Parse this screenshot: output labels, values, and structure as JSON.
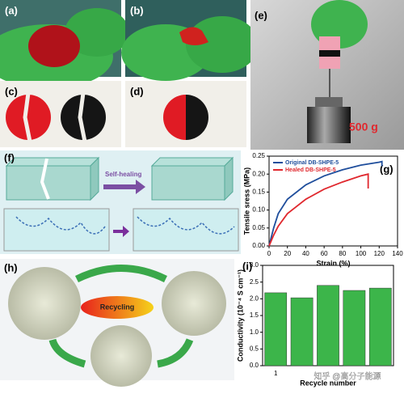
{
  "panel_labels": [
    "(a)",
    "(b)",
    "(c)",
    "(d)",
    "(e)",
    "(f)",
    "(g)",
    "(h)",
    "(i)"
  ],
  "annotations": {
    "weight": "500 g",
    "self_healing": "Self-healing",
    "recycling": "Recycling",
    "watermark": "知乎 @高分子能源"
  },
  "chart_data": [
    {
      "type": "line",
      "xlabel": "Strain (%)",
      "ylabel": "Tensile sress (MPa)",
      "xlim": [
        0,
        140
      ],
      "xticks": [
        0,
        20,
        40,
        60,
        80,
        100,
        120,
        140
      ],
      "ylim": [
        0,
        0.25
      ],
      "yticks": [
        {
          "value": 0,
          "label": "0.00"
        },
        {
          "value": 0.05,
          "label": "0.05"
        },
        {
          "value": 0.1,
          "label": "0.10"
        },
        {
          "value": 0.15,
          "label": "0.15"
        },
        {
          "value": 0.2,
          "label": "0.20"
        },
        {
          "value": 0.25,
          "label": "0.25"
        }
      ],
      "legend": "top-left",
      "series": [
        {
          "name": "Original DB-SHPE-5",
          "color": "#1f4e9c",
          "x": [
            0,
            5,
            10,
            20,
            40,
            60,
            80,
            100,
            120,
            123,
            123
          ],
          "values": [
            0,
            0.05,
            0.09,
            0.13,
            0.17,
            0.195,
            0.212,
            0.225,
            0.233,
            0.235,
            0.222
          ]
        },
        {
          "name": "Healed DB-SHPE-5",
          "color": "#e0282e",
          "x": [
            0,
            5,
            10,
            20,
            40,
            60,
            80,
            100,
            108,
            108
          ],
          "values": [
            0,
            0.03,
            0.055,
            0.09,
            0.13,
            0.158,
            0.178,
            0.195,
            0.2,
            0.16
          ]
        }
      ]
    },
    {
      "type": "bar",
      "xlabel": "Recycle number",
      "ylabel": "Conductivity (10⁻⁴ S cm⁻¹)",
      "categories": [
        "1",
        null,
        null,
        null,
        null
      ],
      "values": [
        2.18,
        2.03,
        2.4,
        2.25,
        2.32
      ],
      "color": "#3cb54a",
      "ylim": [
        0,
        3
      ],
      "yticks": [
        {
          "value": 0,
          "label": "0.0"
        },
        {
          "value": 0.5,
          "label": "0.5"
        },
        {
          "value": 1,
          "label": "1.0"
        },
        {
          "value": 1.5,
          "label": "1.5"
        },
        {
          "value": 2,
          "label": "2.0"
        },
        {
          "value": 2.5,
          "label": "2.5"
        },
        {
          "value": 3,
          "label": "3.0"
        }
      ]
    }
  ]
}
